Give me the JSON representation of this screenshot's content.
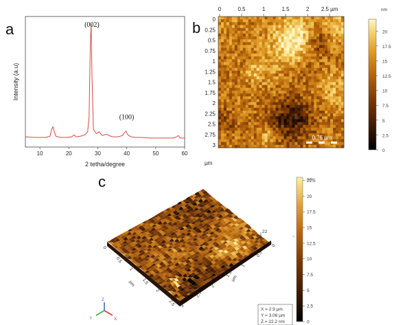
{
  "panels": {
    "a": "a",
    "b": "b",
    "c": "c"
  },
  "chart_data": [
    {
      "type": "line",
      "xlabel": "2 tetha/degree",
      "ylabel": "Intensity (a.u)",
      "xlim": [
        5,
        60
      ],
      "xticks": [
        "10",
        "20",
        "30",
        "40",
        "50",
        "60"
      ],
      "series_color": "#d94545",
      "peak_labels": [
        {
          "label": "(002)",
          "x": 27.5
        },
        {
          "label": "(100)",
          "x": 39.5
        }
      ],
      "x": [
        5,
        8,
        10,
        12,
        13.5,
        14.1,
        14.5,
        14.9,
        15.5,
        17,
        19,
        21,
        21.8,
        22.5,
        24,
        25.5,
        26.5,
        27.0,
        27.4,
        27.7,
        28.0,
        28.5,
        29.5,
        30.5,
        31.5,
        33,
        35,
        37,
        38.5,
        39.3,
        39.8,
        40.4,
        41.5,
        43,
        45,
        48,
        51,
        54,
        56,
        57.3,
        57.8,
        58.5,
        60
      ],
      "y": [
        0.06,
        0.055,
        0.055,
        0.055,
        0.065,
        0.12,
        0.14,
        0.11,
        0.065,
        0.055,
        0.055,
        0.06,
        0.075,
        0.06,
        0.065,
        0.075,
        0.1,
        0.22,
        0.78,
        0.96,
        0.55,
        0.12,
        0.085,
        0.1,
        0.07,
        0.08,
        0.06,
        0.06,
        0.07,
        0.095,
        0.105,
        0.075,
        0.06,
        0.055,
        0.055,
        0.05,
        0.05,
        0.05,
        0.05,
        0.06,
        0.07,
        0.05,
        0.05
      ]
    },
    {
      "type": "heatmap",
      "xticks": [
        "0",
        "0.5",
        "1",
        "1.5",
        "2",
        "2.5 µm"
      ],
      "yticks": [
        "0",
        "0.25",
        "0.5",
        "0.75",
        "1",
        "1.25",
        "1.5",
        "1.75",
        "2",
        "2.25",
        "2.5",
        "2.75",
        "3"
      ],
      "yunit": "µm",
      "scale_bar_label": "0.75 µm",
      "colorbar_unit": "nm",
      "colorbar_ticks": [
        "20",
        "17.5",
        "15",
        "12.5",
        "10",
        "7.5",
        "5",
        "2.5",
        "0"
      ],
      "colorbar_range": [
        0,
        22
      ],
      "colors": [
        "#000000",
        "#3d1a02",
        "#7a3a05",
        "#b8660c",
        "#e09a25",
        "#f4d36a",
        "#fff7c8"
      ]
    },
    {
      "type": "surface-3d",
      "axis_ticks_left": [
        "0",
        "0.5",
        "1",
        "1.5",
        "2",
        "2.5"
      ],
      "axis_ticks_right": [
        "3",
        "2.5",
        "2",
        "1.5",
        "1",
        "0.5",
        "0"
      ],
      "axis_unit": "µm",
      "z_max_label": "22",
      "z_zero_label": "0",
      "colorbar_unit": "nm",
      "colorbar_ticks": [
        "22.5",
        "20",
        "17.5",
        "15",
        "12.5",
        "10",
        "7.5",
        "5",
        "2.5",
        "0"
      ],
      "colorbar_range": [
        0,
        23
      ],
      "axis_icon_labels": [
        "Z",
        "Y",
        "X"
      ],
      "readout": [
        "X = 2.9 µm",
        "Y = 3.06 µm",
        "Z = 22.2 nm"
      ]
    }
  ]
}
